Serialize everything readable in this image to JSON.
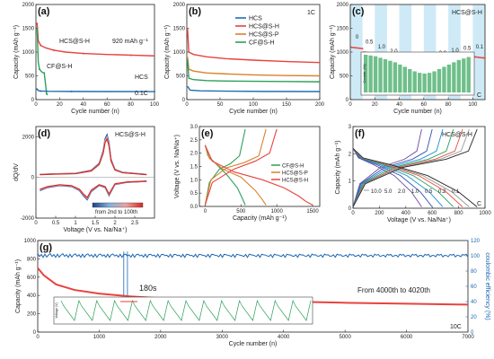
{
  "colors": {
    "hcs": "#1f6fb2",
    "hcs_s_h": "#e8423e",
    "hcs_s_p": "#d9822b",
    "cf_s_h": "#2ca05a",
    "band": "#cfeaf7",
    "ce": "#1b67b0"
  },
  "chart_data": [
    {
      "id": "a",
      "type": "line",
      "panel_label": "(a)",
      "xlabel": "Cycle number (n)",
      "ylabel": "Capacity (mAh g⁻¹)",
      "xlim": [
        0,
        100
      ],
      "ylim": [
        0,
        2000
      ],
      "xticks": [
        0,
        20,
        40,
        60,
        80,
        100
      ],
      "yticks": [
        0,
        500,
        1000,
        1500,
        2000
      ],
      "annotations": [
        "HCS@S-H",
        "920 mAh g⁻¹",
        "CF@S-H",
        "HCS",
        "0.1C"
      ],
      "series": [
        {
          "name": "HCS@S-H",
          "x": [
            1,
            2,
            4,
            8,
            15,
            25,
            40,
            60,
            80,
            100
          ],
          "y": [
            1600,
            1240,
            1140,
            1090,
            1040,
            1000,
            970,
            950,
            935,
            920
          ]
        },
        {
          "name": "CF@S-H",
          "x": [
            1,
            2,
            3,
            5,
            7,
            8,
            9,
            10
          ],
          "y": [
            1500,
            780,
            640,
            580,
            560,
            350,
            120,
            100
          ]
        },
        {
          "name": "HCS",
          "x": [
            1,
            2,
            4,
            10,
            30,
            60,
            100
          ],
          "y": [
            220,
            190,
            180,
            175,
            172,
            170,
            168
          ]
        }
      ]
    },
    {
      "id": "b",
      "type": "line",
      "panel_label": "(b)",
      "xlabel": "Cycle number (n)",
      "ylabel": "Capacity (mAh g⁻¹)",
      "xlim": [
        0,
        200
      ],
      "ylim": [
        0,
        2000
      ],
      "xticks": [
        0,
        50,
        100,
        150,
        200
      ],
      "yticks": [
        0,
        500,
        1000,
        1500,
        2000
      ],
      "annotations": [
        "1C"
      ],
      "legend": [
        "HCS",
        "HCS@S-H",
        "HCS@S-P",
        "CF@S-H"
      ],
      "series": [
        {
          "name": "HCS",
          "x": [
            1,
            5,
            20,
            60,
            120,
            200
          ],
          "y": [
            280,
            200,
            185,
            178,
            172,
            170
          ]
        },
        {
          "name": "HCS@S-H",
          "x": [
            1,
            3,
            10,
            30,
            60,
            100,
            150,
            200
          ],
          "y": [
            1500,
            1000,
            950,
            900,
            860,
            830,
            800,
            780
          ]
        },
        {
          "name": "HCS@S-P",
          "x": [
            1,
            3,
            10,
            30,
            60,
            100,
            150,
            200
          ],
          "y": [
            900,
            640,
            600,
            560,
            540,
            520,
            505,
            500
          ]
        },
        {
          "name": "CF@S-H",
          "x": [
            1,
            3,
            10,
            30,
            60,
            100,
            150,
            200
          ],
          "y": [
            850,
            450,
            420,
            400,
            390,
            385,
            380,
            375
          ]
        }
      ]
    },
    {
      "id": "c",
      "type": "scatter",
      "panel_label": "(c)",
      "xlabel": "Cycle number (n)",
      "ylabel": "Capacity (mAh g⁻¹)",
      "xlim": [
        0,
        110
      ],
      "ylim": [
        0,
        2000
      ],
      "xticks": [
        0,
        20,
        40,
        60,
        80,
        100
      ],
      "yticks": [
        0,
        500,
        1000,
        1500,
        2000
      ],
      "annotations": [
        "HCS@S-H",
        "C"
      ],
      "rate_labels": [
        "0",
        "0.5",
        "1.0",
        "2.0",
        "5.0",
        "10.0",
        "5.0",
        "2.0",
        "1.0",
        "0.5",
        "0.1"
      ],
      "segments": [
        {
          "x": [
            1,
            10
          ],
          "y": 1100
        },
        {
          "x": [
            11,
            20
          ],
          "y": 1000
        },
        {
          "x": [
            21,
            30
          ],
          "y": 900
        },
        {
          "x": [
            31,
            40
          ],
          "y": 800
        },
        {
          "x": [
            41,
            50
          ],
          "y": 700
        },
        {
          "x": [
            51,
            60
          ],
          "y": 620
        },
        {
          "x": [
            61,
            70
          ],
          "y": 680
        },
        {
          "x": [
            71,
            80
          ],
          "y": 760
        },
        {
          "x": [
            81,
            90
          ],
          "y": 820
        },
        {
          "x": [
            91,
            100
          ],
          "y": 870
        },
        {
          "x": [
            101,
            110
          ],
          "y": 900
        }
      ],
      "inset": {
        "type": "bar",
        "ylabel": "Contrib. (%)",
        "values": [
          100,
          98,
          96,
          92,
          88,
          84,
          80,
          74,
          68,
          62,
          56,
          52,
          50,
          52,
          56,
          62,
          68,
          74,
          80,
          86,
          90,
          94
        ]
      }
    },
    {
      "id": "d",
      "type": "line",
      "panel_label": "(d)",
      "xlabel": "Voltage (V vs. Na/Na⁺)",
      "ylabel": "dQ/dV",
      "xlim": [
        0,
        3.0
      ],
      "ylim": [
        -2000,
        2500
      ],
      "xticks": [
        0.0,
        0.5,
        1.0,
        1.5,
        2.0,
        2.5
      ],
      "yticks": [
        -2000,
        0,
        2000
      ],
      "annotations": [
        "HCS@S-H",
        "from 2nd to 100th"
      ],
      "colorbar": [
        "#1d3f8a",
        "#7fb3e0",
        "#f2a0a0",
        "#d7261e"
      ],
      "series": [
        {
          "name": "charge",
          "x": [
            0.1,
            0.5,
            1.0,
            1.4,
            1.6,
            1.7,
            1.75,
            1.8,
            1.85,
            1.9,
            2.0,
            2.2,
            2.5,
            2.8
          ],
          "y": [
            150,
            180,
            200,
            350,
            700,
            1300,
            1900,
            2100,
            1700,
            900,
            400,
            250,
            200,
            150
          ]
        },
        {
          "name": "discharge",
          "x": [
            0.1,
            0.3,
            0.6,
            0.9,
            1.1,
            1.2,
            1.3,
            1.4,
            1.6,
            1.75,
            1.85,
            2.0,
            2.3,
            2.8
          ],
          "y": [
            -650,
            -500,
            -400,
            -450,
            -650,
            -900,
            -1100,
            -700,
            -400,
            -500,
            -900,
            -350,
            -250,
            -200
          ]
        }
      ]
    },
    {
      "id": "e",
      "type": "line",
      "panel_label": "(e)",
      "xlabel": "Capacity (mAh g⁻¹)",
      "ylabel": "Voltage (V vs. Na/Na⁺)",
      "xlim": [
        -80,
        1600
      ],
      "ylim": [
        0,
        3.0
      ],
      "xticks": [
        0,
        500,
        1000,
        1500
      ],
      "yticks": [
        0.0,
        0.5,
        1.0,
        1.5,
        2.0,
        2.5,
        3.0
      ],
      "legend": [
        "CF@S-H",
        "HCS@S-P",
        "HCS@S-H"
      ],
      "series": [
        {
          "name": "CF@S-H",
          "discharge": {
            "x": [
              0,
              40,
              150,
              300,
              450,
              520,
              560
            ],
            "y": [
              2.3,
              1.9,
              1.6,
              1.2,
              0.7,
              0.3,
              0.05
            ]
          },
          "charge": {
            "x": [
              0,
              60,
              200,
              350,
              480,
              560
            ],
            "y": [
              0.05,
              0.9,
              1.4,
              1.6,
              1.9,
              2.9
            ]
          }
        },
        {
          "name": "HCS@S-P",
          "discharge": {
            "x": [
              0,
              60,
              250,
              500,
              700,
              800,
              850
            ],
            "y": [
              2.3,
              1.8,
              1.4,
              1.1,
              0.6,
              0.25,
              0.05
            ]
          },
          "charge": {
            "x": [
              0,
              80,
              300,
              550,
              750,
              850
            ],
            "y": [
              0.05,
              1.0,
              1.45,
              1.65,
              1.9,
              2.9
            ]
          }
        },
        {
          "name": "HCS@S-H",
          "discharge": {
            "x": [
              0,
              100,
              400,
              800,
              1100,
              1300,
              1400,
              1500
            ],
            "y": [
              2.3,
              1.7,
              1.3,
              1.0,
              0.7,
              0.4,
              0.2,
              0.05
            ]
          },
          "charge": {
            "x": [
              0,
              100,
              400,
              700,
              900,
              1000
            ],
            "y": [
              0.05,
              0.9,
              1.4,
              1.7,
              2.0,
              2.9
            ]
          }
        }
      ]
    },
    {
      "id": "f",
      "type": "line",
      "panel_label": "(f)",
      "xlabel": "Voltage (V vs. Na/Na⁺)",
      "ylabel": "Capacity (mAh g⁻¹)",
      "xlim": [
        0,
        1000
      ],
      "ylim": [
        0,
        3.0
      ],
      "xticks": [
        0,
        200,
        400,
        600,
        800,
        1000
      ],
      "yticks": [
        0,
        1,
        2,
        3
      ],
      "annotations": [
        "HCS@S-H",
        "C"
      ],
      "rate_labels": [
        "10.0",
        "5.0",
        "2.0",
        "1.0",
        "0.5",
        "0.2",
        "0.1"
      ],
      "curve_capacity": [
        520,
        600,
        680,
        760,
        830,
        880,
        940
      ],
      "curve_colors": [
        "#6b4c9a",
        "#2f4fb0",
        "#1b8fd0",
        "#20a060",
        "#e64b3c",
        "#999999",
        "#222222"
      ]
    },
    {
      "id": "g",
      "type": "scatter",
      "panel_label": "(g)",
      "xlabel": "Cycle number (n)",
      "ylabel": "Capacity (mAh g⁻¹)",
      "y2label": "coulombic efficiency (%)",
      "xlim": [
        0,
        7000
      ],
      "ylim": [
        0,
        1000
      ],
      "y2lim": [
        0,
        120
      ],
      "xticks": [
        0,
        1000,
        2000,
        3000,
        4000,
        5000,
        6000,
        7000
      ],
      "yticks": [
        0,
        200,
        400,
        600,
        800,
        1000
      ],
      "y2ticks": [
        0,
        20,
        40,
        60,
        80,
        100,
        120
      ],
      "annotations": [
        "180s",
        "From 4000th to 4020th",
        "10C"
      ],
      "capacity": {
        "x": [
          0,
          100,
          300,
          600,
          1000,
          1500,
          2000,
          3000,
          4000,
          5000,
          6000,
          7000
        ],
        "y": [
          700,
          620,
          520,
          460,
          420,
          390,
          370,
          350,
          335,
          320,
          310,
          300
        ]
      },
      "ce_percent": 100,
      "inset": {
        "type": "line",
        "ylabel": "Voltage (V)",
        "cycles": 14
      }
    }
  ]
}
